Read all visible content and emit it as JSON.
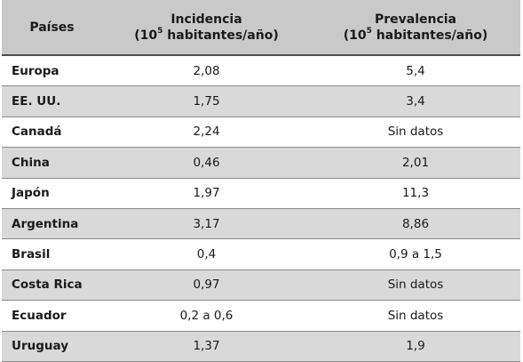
{
  "header": {
    "country": "Países",
    "incidence_title": "Incidencia",
    "incidence_unit_prefix": "(10",
    "incidence_unit_exp": "5",
    "incidence_unit_suffix": " habitantes/año)",
    "prevalence_title": "Prevalencia",
    "prevalence_unit_prefix": "(10",
    "prevalence_unit_exp": "5",
    "prevalence_unit_suffix": " habitantes/año)"
  },
  "rows": [
    {
      "country": "Europa",
      "incidence": "2,08",
      "prevalence": "5,4"
    },
    {
      "country": "EE. UU.",
      "incidence": "1,75",
      "prevalence": "3,4"
    },
    {
      "country": "Canadá",
      "incidence": "2,24",
      "prevalence": "Sin datos"
    },
    {
      "country": "China",
      "incidence": "0,46",
      "prevalence": "2,01"
    },
    {
      "country": "Japón",
      "incidence": "1,97",
      "prevalence": "11,3"
    },
    {
      "country": "Argentina",
      "incidence": "3,17",
      "prevalence": "8,86"
    },
    {
      "country": "Brasil",
      "incidence": "0,4",
      "prevalence": "0,9 a 1,5"
    },
    {
      "country": "Costa Rica",
      "incidence": "0,97",
      "prevalence": "Sin datos"
    },
    {
      "country": "Ecuador",
      "incidence": "0,2 a 0,6",
      "prevalence": "Sin datos"
    },
    {
      "country": "Uruguay",
      "incidence": "1,37",
      "prevalence": "1,9"
    }
  ]
}
